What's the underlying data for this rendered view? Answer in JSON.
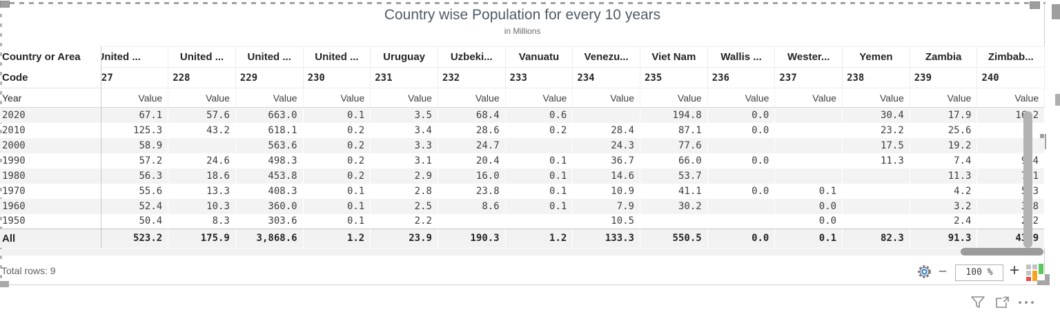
{
  "visual": {
    "title": "Country wise Population for every 10 years",
    "subtitle": "in Millions"
  },
  "table": {
    "corner_header": "Country or Area",
    "code_label": "Code",
    "year_label": "Year",
    "value_label": "Value",
    "columns": [
      {
        "name": "United ...",
        "code": "227"
      },
      {
        "name": "United ...",
        "code": "228"
      },
      {
        "name": "United ...",
        "code": "229"
      },
      {
        "name": "United ...",
        "code": "230"
      },
      {
        "name": "Uruguay",
        "code": "231"
      },
      {
        "name": "Uzbeki...",
        "code": "232"
      },
      {
        "name": "Vanuatu",
        "code": "233"
      },
      {
        "name": "Venezu...",
        "code": "234"
      },
      {
        "name": "Viet Nam",
        "code": "235"
      },
      {
        "name": "Wallis ...",
        "code": "236"
      },
      {
        "name": "Wester...",
        "code": "237"
      },
      {
        "name": "Yemen",
        "code": "238"
      },
      {
        "name": "Zambia",
        "code": "239"
      },
      {
        "name": "Zimbab...",
        "code": "240"
      }
    ],
    "rows": [
      {
        "year": "2020",
        "values": [
          "67.1",
          "57.6",
          "663.0",
          "0.1",
          "3.5",
          "68.4",
          "0.6",
          "",
          "194.8",
          "0.0",
          "",
          "30.4",
          "17.9",
          "16.2"
        ]
      },
      {
        "year": "2010",
        "values": [
          "125.3",
          "43.2",
          "618.1",
          "0.2",
          "3.4",
          "28.6",
          "0.2",
          "28.4",
          "87.1",
          "0.0",
          "",
          "23.2",
          "25.6",
          ""
        ]
      },
      {
        "year": "2000",
        "values": [
          "58.9",
          "",
          "563.6",
          "0.2",
          "3.3",
          "24.7",
          "",
          "24.3",
          "77.6",
          "",
          "",
          "17.5",
          "19.2",
          ""
        ]
      },
      {
        "year": "1990",
        "values": [
          "57.2",
          "24.6",
          "498.3",
          "0.2",
          "3.1",
          "20.4",
          "0.1",
          "36.7",
          "66.0",
          "0.0",
          "",
          "11.3",
          "7.4",
          "9.4"
        ]
      },
      {
        "year": "1980",
        "values": [
          "56.3",
          "18.6",
          "453.8",
          "0.2",
          "2.9",
          "16.0",
          "0.1",
          "14.6",
          "53.7",
          "",
          "",
          "",
          "11.3",
          "7.1"
        ]
      },
      {
        "year": "1970",
        "values": [
          "55.6",
          "13.3",
          "408.3",
          "0.1",
          "2.8",
          "23.8",
          "0.1",
          "10.9",
          "41.1",
          "0.0",
          "0.1",
          "",
          "4.2",
          "5.3"
        ]
      },
      {
        "year": "1960",
        "values": [
          "52.4",
          "10.3",
          "360.0",
          "0.1",
          "2.5",
          "8.6",
          "0.1",
          "7.9",
          "30.2",
          "",
          "0.0",
          "",
          "3.2",
          "3.8"
        ]
      },
      {
        "year": "1950",
        "values": [
          "50.4",
          "8.3",
          "303.6",
          "0.1",
          "2.2",
          "",
          "",
          "10.5",
          "",
          "",
          "0.0",
          "",
          "2.4",
          "2.2"
        ]
      }
    ],
    "total_row": {
      "label": "All",
      "values": [
        "523.2",
        "175.9",
        "3,868.6",
        "1.2",
        "23.9",
        "190.3",
        "1.2",
        "133.3",
        "550.5",
        "0.0",
        "0.1",
        "82.3",
        "91.3",
        "43.9"
      ]
    }
  },
  "status_bar": {
    "total_rows": "Total rows: 9",
    "zoom_out_glyph": "–",
    "zoom_level": "100 %",
    "zoom_in_glyph": "+"
  },
  "icons": {
    "settings": "gear-icon",
    "filter": "funnel-icon",
    "focus": "focus-mode-icon",
    "more": "ellipsis-icon",
    "visual_type": "bar-chart-icon"
  },
  "colors": {
    "title_text": "#4f5b66",
    "row_stripe": "#f3f3f3",
    "gear_accent": "#2b7cd3",
    "bar_orange": "#f4a522",
    "bar_green": "#5cc75f",
    "bar_red": "#e84b4b",
    "handle_gray": "#9e9e9e"
  }
}
